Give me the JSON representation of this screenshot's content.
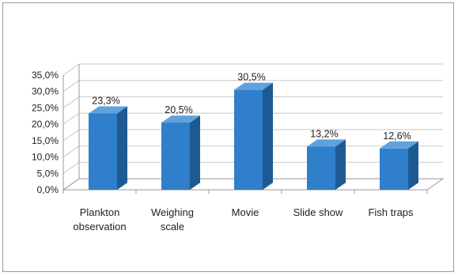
{
  "chart_data": {
    "type": "bar",
    "style": "3d-column",
    "categories": [
      [
        "Plankton",
        "observation"
      ],
      [
        "Weighing",
        "scale"
      ],
      [
        "Movie"
      ],
      [
        "Slide show"
      ],
      [
        "Fish traps"
      ]
    ],
    "values": [
      23.3,
      20.5,
      30.5,
      13.2,
      12.6
    ],
    "data_labels": [
      "23,3%",
      "20,5%",
      "30,5%",
      "13,2%",
      "12,6%"
    ],
    "y_ticks": [
      "0,0%",
      "5,0%",
      "10,0%",
      "15,0%",
      "20,0%",
      "25,0%",
      "30,0%",
      "35,0%"
    ],
    "ylim": [
      0,
      35
    ],
    "title": "",
    "xlabel": "",
    "ylabel": "",
    "grid": true,
    "legend": "none",
    "colors": {
      "bar_front": "#2f7fca",
      "bar_side": "#1d5a94",
      "bar_top": "#5fa2df",
      "grid": "#c8c8c8",
      "axis": "#9a9a9a"
    }
  }
}
